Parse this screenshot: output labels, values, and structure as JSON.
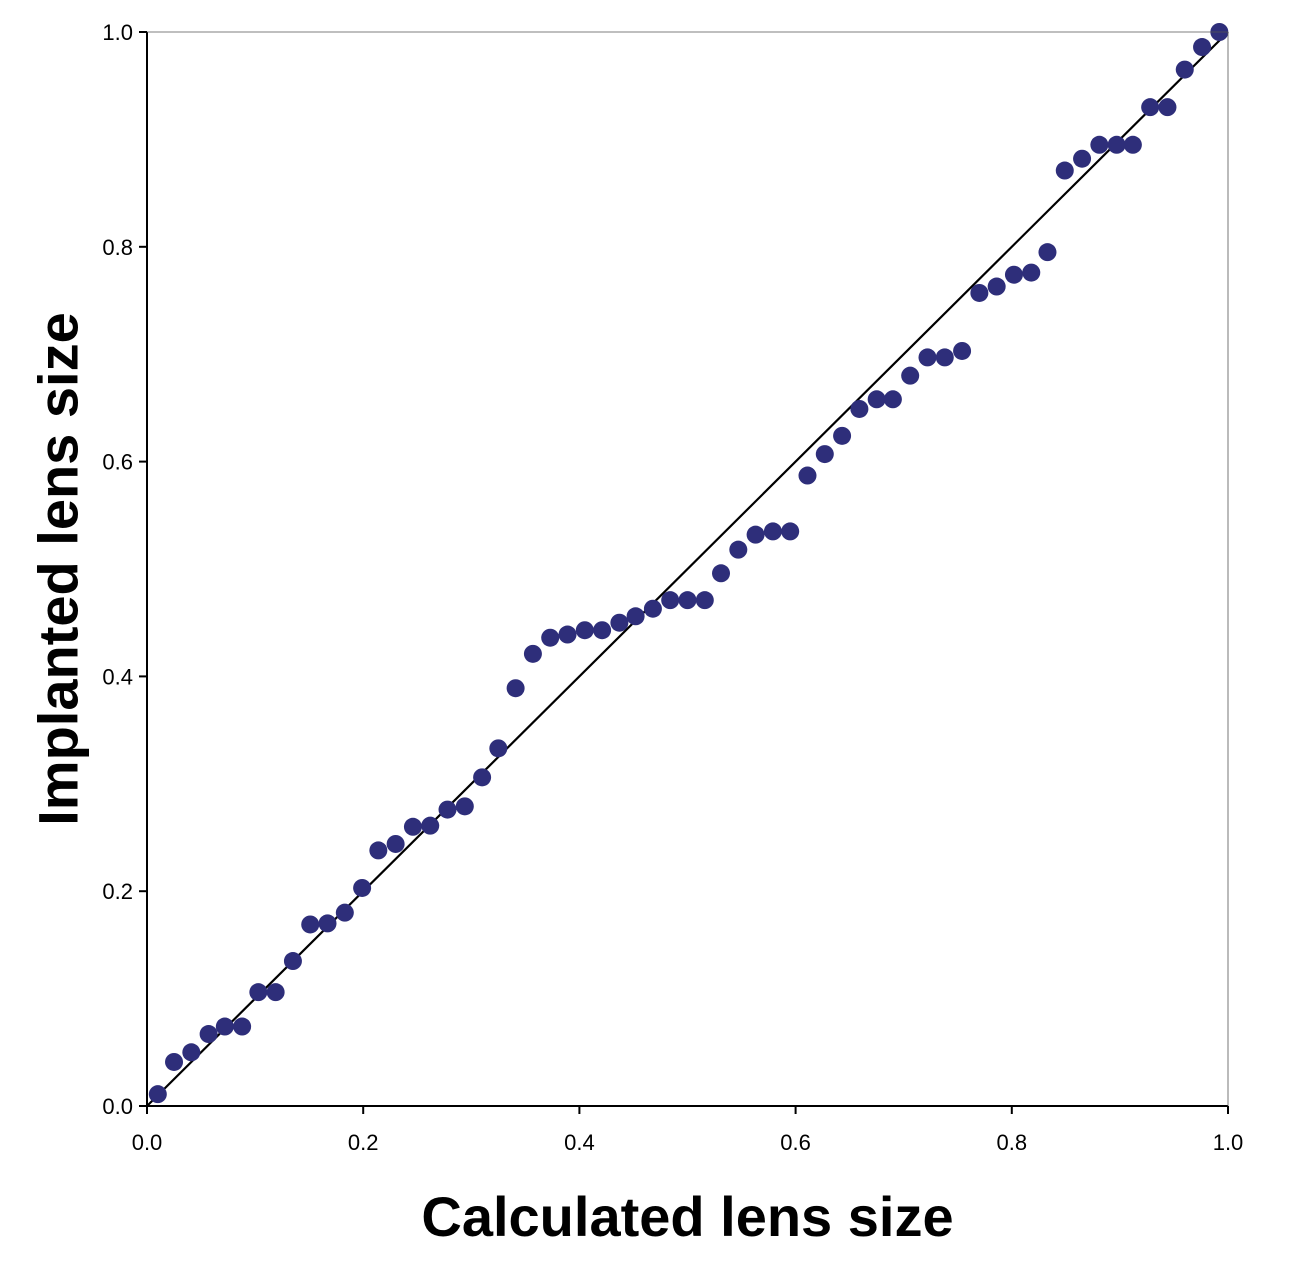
{
  "chart_data": {
    "type": "scatter",
    "title": "",
    "xlabel": "Calculated lens size",
    "ylabel": "Implanted lens size",
    "xlim": [
      0.0,
      1.0
    ],
    "ylim": [
      0.0,
      1.0
    ],
    "x_ticks": [
      "0.0",
      "0.2",
      "0.4",
      "0.6",
      "0.8",
      "1.0"
    ],
    "y_ticks": [
      "0.0",
      "0.2",
      "0.4",
      "0.6",
      "0.8",
      "1.0"
    ],
    "grid": false,
    "legend": "none",
    "reference_line": {
      "from": [
        0.0,
        0.0
      ],
      "to": [
        1.0,
        1.0
      ],
      "color": "#000000"
    },
    "marker_color": "#2e2e7a",
    "series": [
      {
        "points": [
          [
            0.01,
            0.011
          ],
          [
            0.025,
            0.041
          ],
          [
            0.041,
            0.05
          ],
          [
            0.057,
            0.067
          ],
          [
            0.072,
            0.074
          ],
          [
            0.088,
            0.074
          ],
          [
            0.103,
            0.106
          ],
          [
            0.119,
            0.106
          ],
          [
            0.135,
            0.135
          ],
          [
            0.151,
            0.169
          ],
          [
            0.167,
            0.17
          ],
          [
            0.183,
            0.18
          ],
          [
            0.199,
            0.203
          ],
          [
            0.214,
            0.238
          ],
          [
            0.23,
            0.244
          ],
          [
            0.246,
            0.26
          ],
          [
            0.262,
            0.261
          ],
          [
            0.278,
            0.276
          ],
          [
            0.294,
            0.279
          ],
          [
            0.31,
            0.306
          ],
          [
            0.325,
            0.333
          ],
          [
            0.341,
            0.389
          ],
          [
            0.357,
            0.421
          ],
          [
            0.373,
            0.436
          ],
          [
            0.389,
            0.439
          ],
          [
            0.405,
            0.443
          ],
          [
            0.421,
            0.443
          ],
          [
            0.437,
            0.45
          ],
          [
            0.452,
            0.456
          ],
          [
            0.468,
            0.463
          ],
          [
            0.484,
            0.471
          ],
          [
            0.5,
            0.471
          ],
          [
            0.516,
            0.471
          ],
          [
            0.531,
            0.496
          ],
          [
            0.547,
            0.518
          ],
          [
            0.563,
            0.532
          ],
          [
            0.579,
            0.535
          ],
          [
            0.595,
            0.535
          ],
          [
            0.611,
            0.587
          ],
          [
            0.627,
            0.607
          ],
          [
            0.643,
            0.624
          ],
          [
            0.659,
            0.649
          ],
          [
            0.675,
            0.658
          ],
          [
            0.69,
            0.658
          ],
          [
            0.706,
            0.68
          ],
          [
            0.722,
            0.697
          ],
          [
            0.738,
            0.697
          ],
          [
            0.754,
            0.703
          ],
          [
            0.77,
            0.757
          ],
          [
            0.786,
            0.763
          ],
          [
            0.802,
            0.774
          ],
          [
            0.818,
            0.776
          ],
          [
            0.833,
            0.795
          ],
          [
            0.849,
            0.871
          ],
          [
            0.865,
            0.882
          ],
          [
            0.881,
            0.895
          ],
          [
            0.897,
            0.895
          ],
          [
            0.912,
            0.895
          ],
          [
            0.928,
            0.93
          ],
          [
            0.944,
            0.93
          ],
          [
            0.96,
            0.965
          ],
          [
            0.976,
            0.986
          ],
          [
            0.992,
            1.0
          ]
        ]
      }
    ]
  }
}
